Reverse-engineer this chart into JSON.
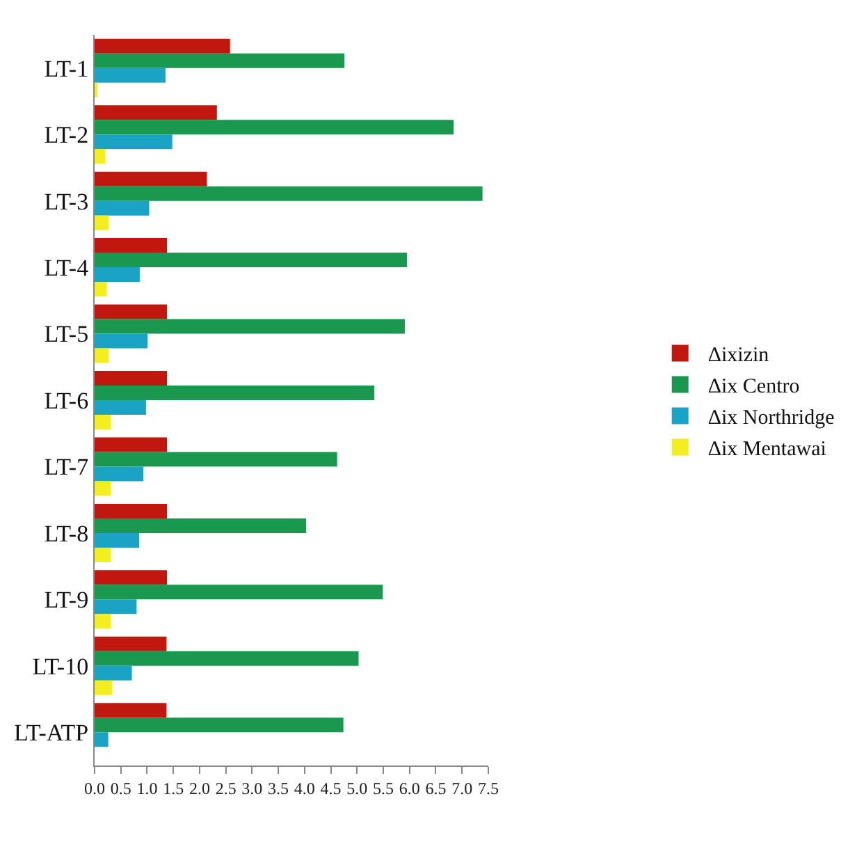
{
  "chart_data": {
    "type": "bar",
    "orientation": "horizontal",
    "categories": [
      "LT-1",
      "LT-2",
      "LT-3",
      "LT-4",
      "LT-5",
      "LT-6",
      "LT-7",
      "LT-8",
      "LT-9",
      "LT-10",
      "LT-ATP"
    ],
    "series": [
      {
        "name": "Δixizin",
        "color": "#c0180f",
        "values": [
          2.58,
          2.33,
          2.14,
          1.38,
          1.38,
          1.38,
          1.38,
          1.38,
          1.38,
          1.37,
          1.37
        ]
      },
      {
        "name": "Δix Centro",
        "color": "#1a9850",
        "values": [
          4.76,
          6.84,
          7.39,
          5.95,
          5.91,
          5.33,
          4.62,
          4.03,
          5.49,
          5.03,
          4.74
        ]
      },
      {
        "name": "Δix Northridge",
        "color": "#1ba3c6",
        "values": [
          1.35,
          1.48,
          1.04,
          0.86,
          1.01,
          0.98,
          0.93,
          0.85,
          0.8,
          0.71,
          0.26
        ]
      },
      {
        "name": "Δix Mentawai",
        "color": "#f2ee20",
        "values": [
          0.05,
          0.2,
          0.27,
          0.23,
          0.27,
          0.31,
          0.31,
          0.31,
          0.31,
          0.33,
          null
        ]
      }
    ],
    "xlim": [
      0,
      7.5
    ],
    "xticks": [
      {
        "value": 0,
        "label": "0.0"
      },
      0.5,
      {
        "value": 1,
        "label": "1.0"
      },
      1.5,
      {
        "value": 2,
        "label": "2.0"
      },
      2.5,
      {
        "value": 3,
        "label": "3.0"
      },
      3.5,
      {
        "value": 4,
        "label": "4.0"
      },
      4.5,
      {
        "value": 5,
        "label": "5.0"
      },
      5.5,
      {
        "value": 6,
        "label": "6.0"
      },
      6.5,
      {
        "value": 7,
        "label": "7.0"
      },
      7.5
    ],
    "legend": "right"
  }
}
